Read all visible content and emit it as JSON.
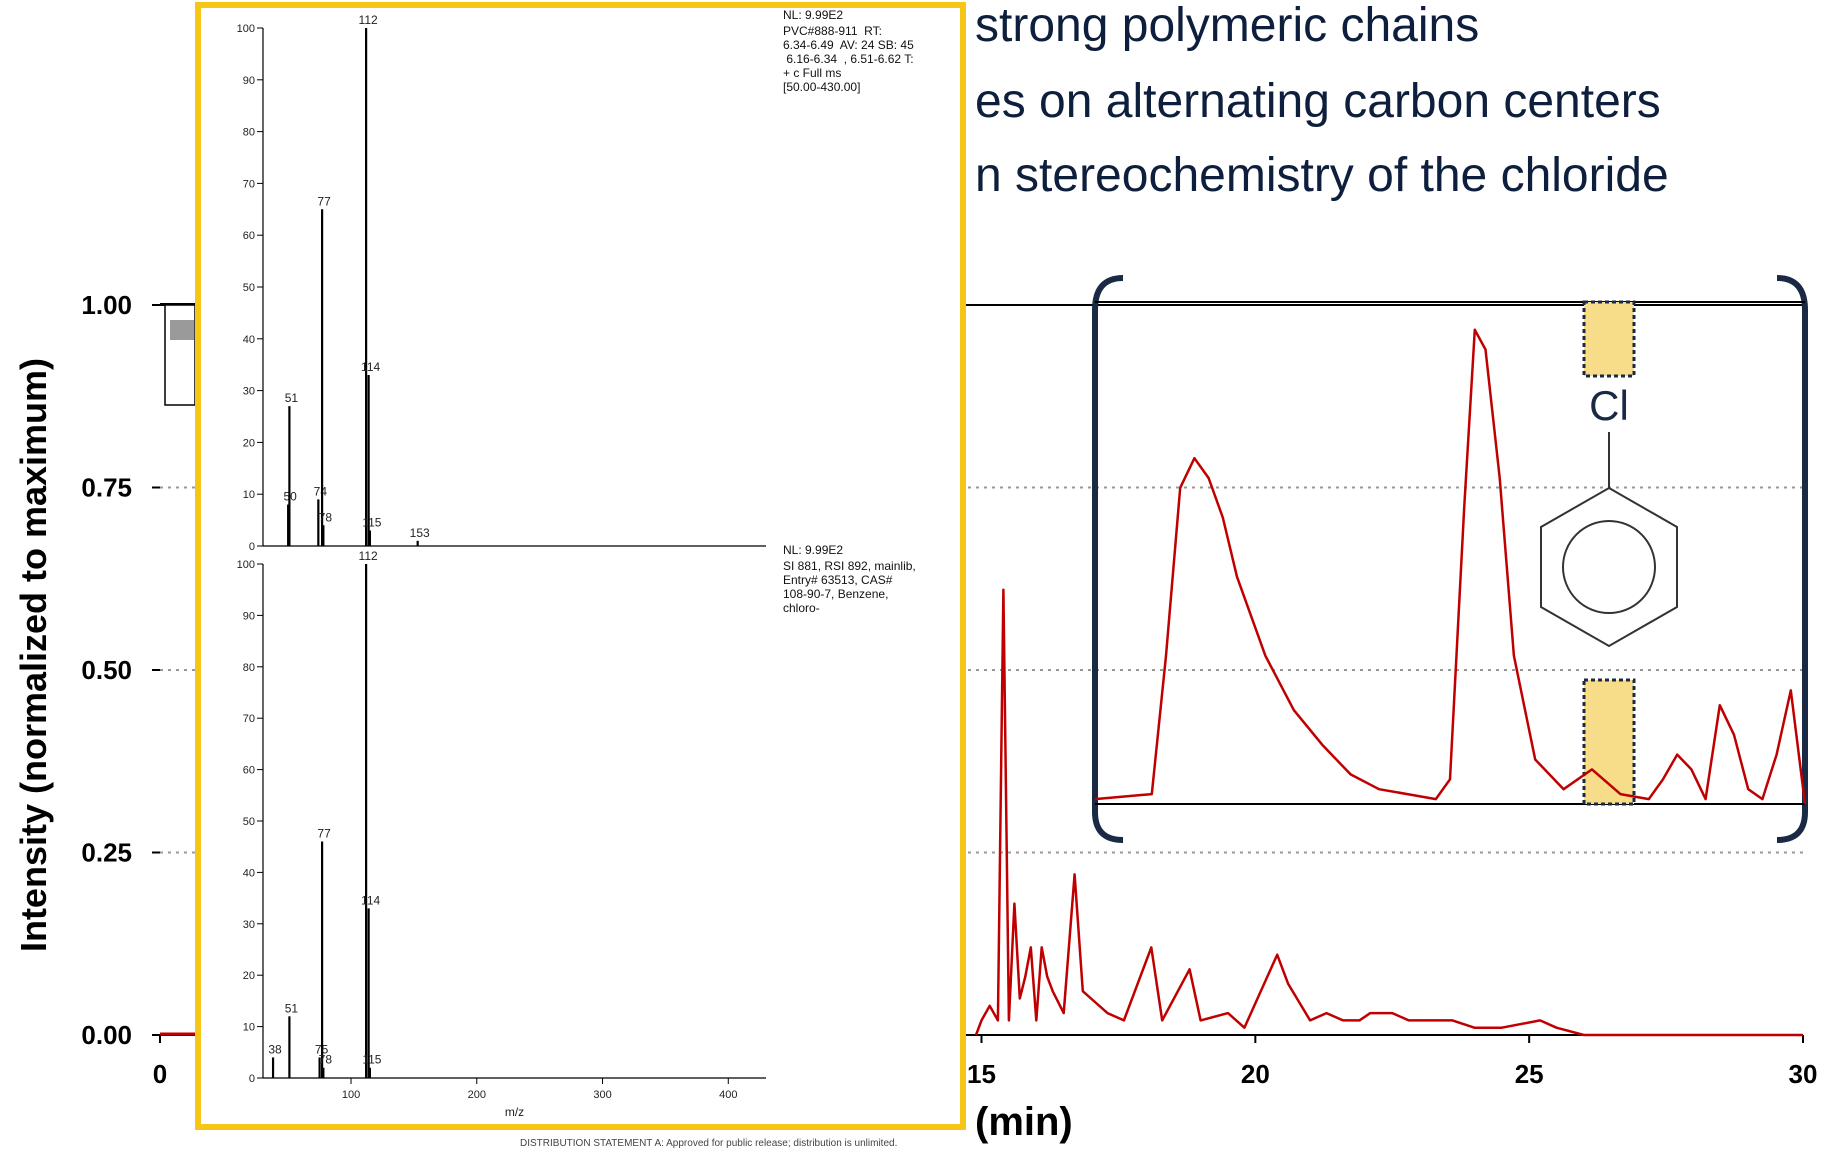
{
  "bullets": {
    "b1": "strong polymeric chains",
    "b2": "es on alternating carbon centers",
    "b3": "n stereochemistry of the chloride"
  },
  "chart_data": [
    {
      "type": "line",
      "xlabel": "(min)",
      "ylabel": "Intensity (normalized to maximum)",
      "xlim": [
        0,
        30
      ],
      "ylim": [
        0,
        1.0
      ],
      "x_ticks": [
        "0",
        "15",
        "20",
        "25",
        "30"
      ],
      "y_ticks": [
        "0.00",
        "0.25",
        "0.50",
        "0.75",
        "1.00"
      ],
      "grid": "dotted horizontal",
      "series": [
        {
          "color": "#c00000",
          "x": [
            14.9,
            15.0,
            15.15,
            15.3,
            15.4,
            15.5,
            15.6,
            15.7,
            15.8,
            15.9,
            16.0,
            16.1,
            16.2,
            16.3,
            16.5,
            16.7,
            16.85,
            17.0,
            17.3,
            17.6,
            18.1,
            18.3,
            18.8,
            19.0,
            19.5,
            19.8,
            20.4,
            20.6,
            21.0,
            21.3,
            21.6,
            21.9,
            22.1,
            22.3,
            22.5,
            22.8,
            23.2,
            23.6,
            24.0,
            24.5,
            25.2,
            25.5,
            26.0,
            27.0,
            28.0,
            29.0,
            30.0
          ],
          "y": [
            0.0,
            0.02,
            0.04,
            0.02,
            0.61,
            0.02,
            0.18,
            0.05,
            0.08,
            0.12,
            0.02,
            0.12,
            0.08,
            0.06,
            0.03,
            0.22,
            0.06,
            0.05,
            0.03,
            0.02,
            0.12,
            0.02,
            0.09,
            0.02,
            0.03,
            0.01,
            0.11,
            0.07,
            0.02,
            0.03,
            0.02,
            0.02,
            0.03,
            0.03,
            0.03,
            0.02,
            0.02,
            0.02,
            0.01,
            0.01,
            0.02,
            0.01,
            0.0,
            0.0,
            0.0,
            0.0,
            0.0
          ]
        }
      ]
    },
    {
      "type": "line",
      "xlim": [
        0,
        10
      ],
      "ylim": [
        0,
        1
      ],
      "series": [
        {
          "color": "#c00000",
          "x": [
            0.0,
            0.8,
            1.0,
            1.2,
            1.4,
            1.6,
            1.8,
            2.0,
            2.4,
            2.8,
            3.2,
            3.6,
            4.0,
            4.4,
            4.8,
            5.0,
            5.2,
            5.35,
            5.5,
            5.7,
            5.9,
            6.2,
            6.6,
            7.0,
            7.4,
            7.8,
            8.0,
            8.2,
            8.4,
            8.6,
            8.8,
            9.0,
            9.2,
            9.4,
            9.6,
            9.8,
            10.0
          ],
          "y": [
            0.01,
            0.02,
            0.3,
            0.64,
            0.7,
            0.66,
            0.58,
            0.46,
            0.3,
            0.19,
            0.12,
            0.06,
            0.03,
            0.02,
            0.01,
            0.05,
            0.6,
            0.96,
            0.92,
            0.66,
            0.3,
            0.09,
            0.03,
            0.07,
            0.02,
            0.01,
            0.05,
            0.1,
            0.07,
            0.01,
            0.2,
            0.14,
            0.03,
            0.01,
            0.1,
            0.23,
            0.0
          ]
        }
      ],
      "annotation": "Cl"
    },
    {
      "type": "bar",
      "title": "NL: 9.99E2",
      "xlim": [
        30,
        430
      ],
      "ylim": [
        0,
        100
      ],
      "header": "PVC#888-911  RT:\n6.34-6.49  AV: 24 SB: 45\n 6.16-6.34  , 6.51-6.62 T:\n+ c Full ms\n[50.00-430.00]",
      "y_ticks": [
        "0",
        "10",
        "20",
        "30",
        "40",
        "50",
        "60",
        "70",
        "80",
        "90",
        "100"
      ],
      "x": [
        50,
        51,
        74,
        77,
        78,
        112,
        114,
        115,
        153
      ],
      "values": [
        8,
        27,
        9,
        65,
        4,
        100,
        33,
        3,
        1
      ],
      "labels": [
        "50",
        "51",
        "74",
        "77",
        "78",
        "112",
        "114",
        "115",
        "153"
      ]
    },
    {
      "type": "bar",
      "title": "NL: 9.99E2",
      "xlim": [
        30,
        430
      ],
      "ylim": [
        0,
        100
      ],
      "header": "SI 881, RSI 892, mainlib,\nEntry# 63513, CAS#\n108-90-7, Benzene,\nchloro-",
      "xlabel": "m/z",
      "y_ticks": [
        "0",
        "10",
        "20",
        "30",
        "40",
        "50",
        "60",
        "70",
        "80",
        "90",
        "100"
      ],
      "x_ticks": [
        "100",
        "200",
        "300",
        "400"
      ],
      "x": [
        38,
        51,
        75,
        77,
        78,
        112,
        114,
        115
      ],
      "values": [
        4,
        12,
        4,
        46,
        2,
        100,
        33,
        2
      ],
      "labels": [
        "38",
        "51",
        "75",
        "77",
        "78",
        "112",
        "114",
        "115"
      ]
    }
  ],
  "footer_text": "DISTRIBUTION STATEMENT A: Approved for public release; distribution is unlimited."
}
